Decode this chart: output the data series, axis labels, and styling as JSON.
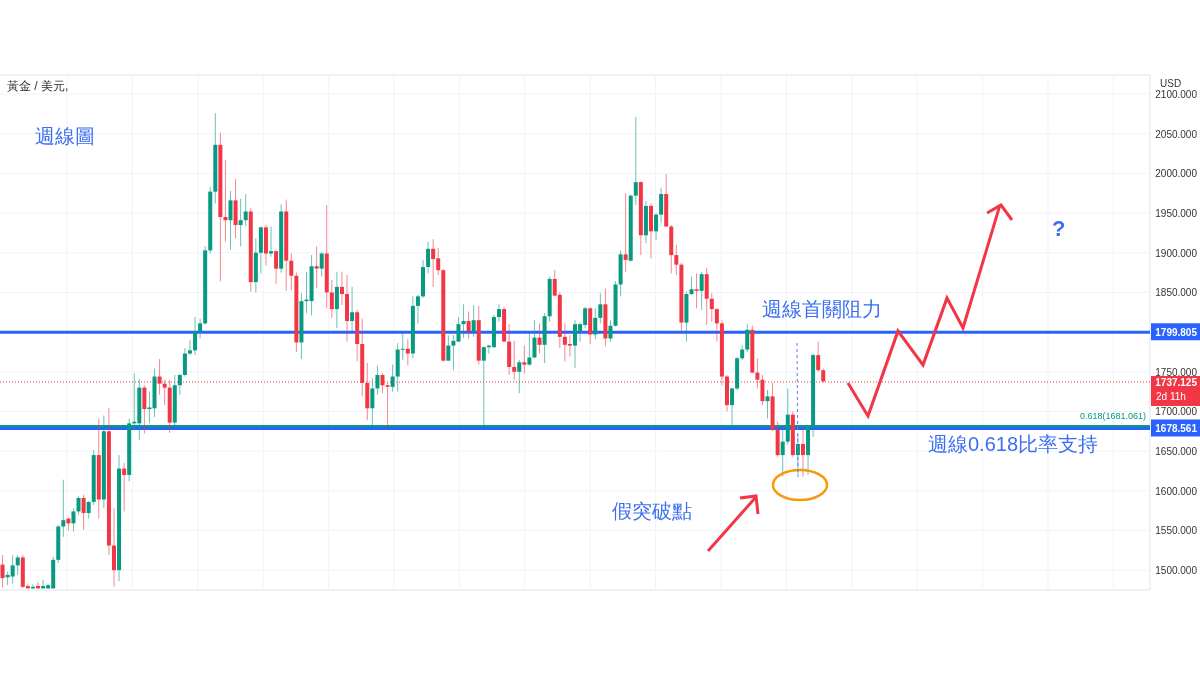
{
  "chart_data": {
    "type": "candlestick",
    "title": "黃金 / 美元,",
    "subtitle": "週線圖",
    "ylabel": "USD",
    "categories": [
      null,
      null,
      null,
      null,
      null,
      null,
      null,
      null,
      null,
      null,
      null,
      null,
      null,
      null,
      null,
      null,
      null,
      null,
      null,
      null,
      null,
      null,
      null,
      null,
      null,
      null,
      null,
      null,
      null,
      null,
      null,
      null,
      null,
      null,
      null,
      null,
      null,
      null,
      null,
      null,
      null,
      null,
      null,
      null,
      null,
      null,
      null,
      null,
      null,
      null,
      null,
      null,
      null,
      null,
      null,
      null,
      null,
      null,
      null,
      null,
      null,
      null,
      null,
      null,
      null,
      null,
      null,
      null,
      null,
      null,
      null,
      null,
      null,
      null,
      null,
      null,
      null,
      null,
      null,
      null,
      null,
      null,
      null,
      null,
      null,
      null,
      null,
      null,
      null,
      null,
      null,
      null,
      null,
      null,
      null,
      null,
      null,
      null,
      null,
      null,
      null,
      null,
      null,
      null,
      null,
      null,
      null,
      null,
      null,
      null,
      null,
      null,
      null,
      null,
      null,
      null,
      null,
      null,
      null,
      null,
      null,
      null,
      null,
      null,
      null,
      null,
      null,
      null,
      null,
      null,
      null,
      null,
      null,
      null,
      null,
      null,
      null,
      null,
      null,
      null,
      null,
      null,
      null,
      null,
      null,
      null,
      null,
      null,
      null,
      null,
      null,
      null,
      null,
      null,
      null,
      null,
      null,
      null,
      null,
      null,
      null,
      null,
      null,
      null,
      null,
      null,
      null,
      null,
      null,
      null,
      null,
      null,
      null,
      null,
      null,
      null,
      null,
      null,
      null,
      null,
      null,
      null,
      null,
      null,
      null,
      null,
      null,
      null,
      null,
      null,
      null,
      null,
      null,
      null,
      null,
      null,
      null,
      null,
      null,
      null,
      null,
      null,
      null,
      null,
      null,
      null,
      null,
      null,
      null,
      null,
      null,
      null,
      null,
      null,
      null,
      null,
      null,
      null,
      null,
      null,
      null,
      null,
      null,
      null,
      null,
      null,
      null
    ],
    "ohlc": [
      [
        1507,
        1519,
        1478,
        1490
      ],
      [
        1491,
        1498,
        1481,
        1494
      ],
      [
        1492,
        1519,
        1483,
        1506
      ],
      [
        1506,
        1519,
        1494,
        1516
      ],
      [
        1516,
        1519,
        1477,
        1479
      ],
      [
        1480,
        1483,
        1477,
        1477
      ],
      [
        1477,
        1482,
        1477,
        1479
      ],
      [
        1480,
        1485,
        1477,
        1477
      ],
      [
        1477,
        1488,
        1477,
        1480
      ],
      [
        1477,
        1483,
        1477,
        1481
      ],
      [
        1477,
        1517,
        1477,
        1513
      ],
      [
        1513,
        1557,
        1509,
        1555
      ],
      [
        1555,
        1614,
        1542,
        1563
      ],
      [
        1565,
        1566,
        1550,
        1559
      ],
      [
        1559,
        1578,
        1549,
        1574
      ],
      [
        1574,
        1593,
        1570,
        1591
      ],
      [
        1591,
        1595,
        1551,
        1572
      ],
      [
        1572,
        1587,
        1565,
        1586
      ],
      [
        1586,
        1651,
        1582,
        1645
      ],
      [
        1645,
        1691,
        1565,
        1589
      ],
      [
        1589,
        1695,
        1578,
        1675
      ],
      [
        1675,
        1704,
        1519,
        1531
      ],
      [
        1531,
        1578,
        1479,
        1500
      ],
      [
        1500,
        1645,
        1486,
        1628
      ],
      [
        1628,
        1635,
        1574,
        1620
      ],
      [
        1620,
        1691,
        1612,
        1685
      ],
      [
        1685,
        1748,
        1679,
        1687
      ],
      [
        1685,
        1741,
        1664,
        1730
      ],
      [
        1730,
        1733,
        1672,
        1703
      ],
      [
        1703,
        1725,
        1685,
        1705
      ],
      [
        1704,
        1754,
        1693,
        1744
      ],
      [
        1744,
        1766,
        1721,
        1735
      ],
      [
        1735,
        1740,
        1708,
        1730
      ],
      [
        1730,
        1740,
        1673,
        1686
      ],
      [
        1686,
        1746,
        1681,
        1733
      ],
      [
        1733,
        1747,
        1721,
        1746
      ],
      [
        1746,
        1780,
        1744,
        1773
      ],
      [
        1773,
        1790,
        1771,
        1777
      ],
      [
        1777,
        1819,
        1771,
        1801
      ],
      [
        1801,
        1817,
        1792,
        1811
      ],
      [
        1811,
        1908,
        1809,
        1903
      ],
      [
        1903,
        1983,
        1899,
        1977
      ],
      [
        1977,
        2076,
        1962,
        2036
      ],
      [
        2036,
        2051,
        1864,
        1945
      ],
      [
        1945,
        2017,
        1914,
        1941
      ],
      [
        1941,
        1978,
        1904,
        1966
      ],
      [
        1966,
        1993,
        1918,
        1935
      ],
      [
        1935,
        1968,
        1908,
        1941
      ],
      [
        1941,
        1974,
        1933,
        1952
      ],
      [
        1952,
        1956,
        1851,
        1863
      ],
      [
        1863,
        1918,
        1850,
        1900
      ],
      [
        1900,
        1933,
        1874,
        1932
      ],
      [
        1932,
        1935,
        1884,
        1899
      ],
      [
        1899,
        1933,
        1895,
        1902
      ],
      [
        1902,
        1903,
        1861,
        1880
      ],
      [
        1880,
        1961,
        1875,
        1952
      ],
      [
        1952,
        1967,
        1852,
        1890
      ],
      [
        1890,
        1899,
        1853,
        1871
      ],
      [
        1871,
        1875,
        1775,
        1787
      ],
      [
        1787,
        1849,
        1766,
        1839
      ],
      [
        1839,
        1876,
        1824,
        1841
      ],
      [
        1839,
        1897,
        1821,
        1883
      ],
      [
        1883,
        1908,
        1855,
        1880
      ],
      [
        1880,
        1901,
        1870,
        1899
      ],
      [
        1899,
        1960,
        1830,
        1850
      ],
      [
        1850,
        1866,
        1818,
        1829
      ],
      [
        1829,
        1876,
        1805,
        1857
      ],
      [
        1857,
        1876,
        1834,
        1848
      ],
      [
        1848,
        1872,
        1788,
        1814
      ],
      [
        1814,
        1857,
        1801,
        1825
      ],
      [
        1825,
        1828,
        1763,
        1785
      ],
      [
        1785,
        1817,
        1719,
        1736
      ],
      [
        1736,
        1761,
        1689,
        1704
      ],
      [
        1704,
        1742,
        1680,
        1729
      ],
      [
        1729,
        1758,
        1721,
        1746
      ],
      [
        1746,
        1748,
        1723,
        1733
      ],
      [
        1733,
        1736,
        1680,
        1731
      ],
      [
        1731,
        1759,
        1725,
        1744
      ],
      [
        1744,
        1786,
        1725,
        1778
      ],
      [
        1778,
        1799,
        1765,
        1779
      ],
      [
        1779,
        1791,
        1758,
        1773
      ],
      [
        1773,
        1845,
        1767,
        1833
      ],
      [
        1833,
        1847,
        1811,
        1845
      ],
      [
        1845,
        1891,
        1843,
        1882
      ],
      [
        1882,
        1914,
        1874,
        1905
      ],
      [
        1905,
        1917,
        1857,
        1892
      ],
      [
        1893,
        1906,
        1872,
        1878
      ],
      [
        1878,
        1880,
        1763,
        1764
      ],
      [
        1764,
        1796,
        1764,
        1783
      ],
      [
        1783,
        1796,
        1752,
        1789
      ],
      [
        1788,
        1819,
        1788,
        1810
      ],
      [
        1810,
        1835,
        1793,
        1814
      ],
      [
        1814,
        1826,
        1792,
        1801
      ],
      [
        1801,
        1834,
        1794,
        1815
      ],
      [
        1815,
        1833,
        1759,
        1764
      ],
      [
        1764,
        1782,
        1680,
        1781
      ],
      [
        1781,
        1784,
        1773,
        1783
      ],
      [
        1781,
        1822,
        1780,
        1819
      ],
      [
        1819,
        1835,
        1813,
        1829
      ],
      [
        1829,
        1832,
        1788,
        1788
      ],
      [
        1788,
        1810,
        1746,
        1756
      ],
      [
        1756,
        1789,
        1740,
        1750
      ],
      [
        1750,
        1765,
        1723,
        1762
      ],
      [
        1762,
        1783,
        1748,
        1759
      ],
      [
        1759,
        1801,
        1758,
        1768
      ],
      [
        1768,
        1815,
        1767,
        1793
      ],
      [
        1793,
        1811,
        1773,
        1784
      ],
      [
        1784,
        1824,
        1761,
        1820
      ],
      [
        1820,
        1870,
        1813,
        1867
      ],
      [
        1867,
        1878,
        1845,
        1846
      ],
      [
        1847,
        1850,
        1780,
        1794
      ],
      [
        1794,
        1811,
        1763,
        1784
      ],
      [
        1785,
        1796,
        1769,
        1783
      ],
      [
        1783,
        1815,
        1755,
        1810
      ],
      [
        1800,
        1812,
        1788,
        1810
      ],
      [
        1809,
        1832,
        1805,
        1830
      ],
      [
        1830,
        1831,
        1785,
        1797
      ],
      [
        1797,
        1830,
        1791,
        1818
      ],
      [
        1818,
        1849,
        1811,
        1835
      ],
      [
        1835,
        1855,
        1782,
        1792
      ],
      [
        1792,
        1815,
        1788,
        1808
      ],
      [
        1808,
        1864,
        1807,
        1860
      ],
      [
        1860,
        1903,
        1845,
        1898
      ],
      [
        1898,
        1975,
        1876,
        1891
      ],
      [
        1890,
        1973,
        1889,
        1972
      ],
      [
        1972,
        2071,
        1960,
        1989
      ],
      [
        1989,
        1990,
        1897,
        1922
      ],
      [
        1922,
        1965,
        1912,
        1959
      ],
      [
        1959,
        1962,
        1893,
        1927
      ],
      [
        1927,
        1950,
        1916,
        1948
      ],
      [
        1948,
        1982,
        1937,
        1974
      ],
      [
        1974,
        1999,
        1933,
        1933
      ],
      [
        1933,
        1935,
        1874,
        1897
      ],
      [
        1897,
        1910,
        1872,
        1885
      ],
      [
        1885,
        1887,
        1801,
        1812
      ],
      [
        1812,
        1851,
        1788,
        1848
      ],
      [
        1848,
        1870,
        1847,
        1854
      ],
      [
        1854,
        1874,
        1830,
        1852
      ],
      [
        1852,
        1876,
        1828,
        1873
      ],
      [
        1873,
        1881,
        1809,
        1842
      ],
      [
        1842,
        1849,
        1813,
        1829
      ],
      [
        1829,
        1830,
        1788,
        1811
      ],
      [
        1811,
        1815,
        1733,
        1744
      ],
      [
        1744,
        1746,
        1700,
        1708
      ],
      [
        1708,
        1730,
        1683,
        1729
      ],
      [
        1729,
        1769,
        1727,
        1767
      ],
      [
        1767,
        1784,
        1765,
        1778
      ],
      [
        1778,
        1810,
        1775,
        1803
      ],
      [
        1803,
        1808,
        1748,
        1749
      ],
      [
        1749,
        1767,
        1729,
        1740
      ],
      [
        1740,
        1746,
        1708,
        1713
      ],
      [
        1713,
        1727,
        1691,
        1719
      ],
      [
        1719,
        1736,
        1675,
        1677
      ],
      [
        1677,
        1687,
        1643,
        1645
      ],
      [
        1645,
        1677,
        1618,
        1662
      ],
      [
        1662,
        1729,
        1658,
        1696
      ],
      [
        1696,
        1700,
        1643,
        1645
      ],
      [
        1645,
        1671,
        1620,
        1659
      ],
      [
        1659,
        1677,
        1618,
        1645
      ],
      [
        1645,
        1681,
        1620,
        1681
      ],
      [
        1681,
        1773,
        1668,
        1771
      ],
      [
        1771,
        1788,
        1750,
        1752
      ],
      [
        1752,
        1754,
        1736,
        1738
      ],
      null,
      null,
      null,
      null,
      null,
      null,
      null,
      null,
      null,
      null,
      null,
      null,
      null,
      null,
      null,
      null,
      null,
      null,
      null,
      null,
      null,
      null,
      null,
      null,
      null,
      null,
      null,
      null,
      null,
      null,
      null,
      null,
      null,
      null,
      null,
      null,
      null,
      null,
      null,
      null,
      null,
      null,
      null,
      null,
      null,
      null,
      null,
      null,
      null,
      null,
      null,
      null,
      null,
      null,
      null,
      null,
      null,
      null,
      null,
      null,
      null,
      null,
      null,
      null
    ],
    "colors": [
      "#f23645",
      "#089981",
      "#089981",
      "#089981",
      "#f23645",
      "#f23645",
      "#089981",
      "#f23645",
      "#089981",
      "#089981",
      "#089981",
      "#089981",
      "#089981",
      "#f23645",
      "#089981",
      "#089981",
      "#f23645",
      "#089981",
      "#089981",
      "#f23645",
      "#089981",
      "#f23645",
      "#f23645",
      "#089981",
      "#f23645",
      "#089981",
      "#089981",
      "#089981",
      "#f23645",
      "#089981",
      "#089981",
      "#f23645",
      "#f23645",
      "#f23645",
      "#089981",
      "#089981",
      "#089981",
      "#089981",
      "#089981",
      "#089981",
      "#089981",
      "#089981",
      "#089981",
      "#f23645",
      "#f23645",
      "#089981",
      "#f23645",
      "#089981",
      "#089981",
      "#f23645",
      "#089981",
      "#089981",
      "#f23645",
      "#089981",
      "#f23645",
      "#089981",
      "#f23645",
      "#f23645",
      "#f23645",
      "#089981",
      "#089981",
      "#089981",
      "#f23645",
      "#089981",
      "#f23645",
      "#f23645",
      "#089981",
      "#f23645",
      "#f23645",
      "#089981",
      "#f23645",
      "#f23645",
      "#f23645",
      "#089981",
      "#089981",
      "#f23645",
      "#f23645",
      "#089981",
      "#089981",
      "#089981",
      "#f23645",
      "#089981",
      "#089981",
      "#089981",
      "#089981",
      "#f23645",
      "#f23645",
      "#f23645",
      "#089981",
      "#089981",
      "#089981",
      "#089981",
      "#f23645",
      "#089981",
      "#f23645",
      "#089981",
      "#089981",
      "#089981",
      "#089981",
      "#f23645",
      "#f23645",
      "#f23645",
      "#089981",
      "#f23645",
      "#089981",
      "#089981",
      "#f23645",
      "#089981",
      "#089981",
      "#f23645",
      "#f23645",
      "#f23645",
      "#f23645",
      "#089981",
      "#089981",
      "#089981",
      "#f23645",
      "#089981",
      "#089981",
      "#f23645",
      "#089981",
      "#089981",
      "#089981",
      "#f23645",
      "#089981",
      "#089981",
      "#f23645",
      "#089981",
      "#f23645",
      "#089981",
      "#089981",
      "#f23645",
      "#f23645",
      "#f23645",
      "#f23645",
      "#089981",
      "#089981",
      "#f23645",
      "#089981",
      "#f23645",
      "#f23645",
      "#f23645",
      "#f23645",
      "#f23645",
      "#089981",
      "#089981",
      "#089981",
      "#089981",
      "#f23645",
      "#f23645",
      "#f23645",
      "#089981",
      "#f23645",
      "#f23645",
      "#089981",
      "#089981",
      "#f23645",
      "#089981",
      "#f23645",
      "#089981",
      "#089981",
      "#f23645",
      "#f23645",
      null,
      null,
      null,
      null,
      null,
      null,
      null,
      null,
      null,
      null,
      null,
      null,
      null,
      null,
      null,
      null,
      null,
      null,
      null,
      null,
      null,
      null,
      null,
      null,
      null,
      null,
      null,
      null,
      null,
      null,
      null,
      null,
      null,
      null,
      null,
      null,
      null,
      null,
      null,
      null,
      null,
      null,
      null,
      null,
      null,
      null,
      null,
      null,
      null,
      null,
      null,
      null,
      null,
      null,
      null,
      null,
      null,
      null,
      null,
      null,
      null,
      null,
      null,
      null
    ],
    "ylim": [
      1475,
      2124
    ],
    "yticks": [
      {
        "value": 1500,
        "label": "1500.000"
      },
      {
        "value": 1550,
        "label": "1550.000"
      },
      {
        "value": 1600,
        "label": "1600.000"
      },
      {
        "value": 1650,
        "label": "1650.000"
      },
      {
        "value": 1700,
        "label": "1700.000"
      },
      {
        "value": 1750,
        "label": "1750.000"
      },
      {
        "value": 1800,
        "label": null
      },
      {
        "value": 1850,
        "label": "1850.000"
      },
      {
        "value": 1900,
        "label": "1900.000"
      },
      {
        "value": 1950,
        "label": "1950.000"
      },
      {
        "value": 2000,
        "label": "2000.000"
      },
      {
        "value": 2050,
        "label": "2050.000"
      },
      {
        "value": 2100,
        "label": "2100.000"
      }
    ],
    "grid": true,
    "ref_lines": [
      {
        "axis": "y",
        "value": 1681.061,
        "label": "0.618(1681.061)",
        "color": "#089981"
      },
      {
        "axis": "y",
        "value": 1799.805,
        "label": "1799.805",
        "color": "#2962ff"
      },
      {
        "axis": "y",
        "value": 1678.561,
        "label": "1678.561",
        "color": "#2962ff"
      },
      {
        "axis": "y",
        "value": 1737.125,
        "label": "1737.125",
        "color": "#f23645",
        "line_style": "dotted"
      }
    ],
    "annotations": [
      "週線首關阻力",
      "週線0.618比率支持",
      "假突破點",
      "?",
      "2d 11h"
    ]
  }
}
